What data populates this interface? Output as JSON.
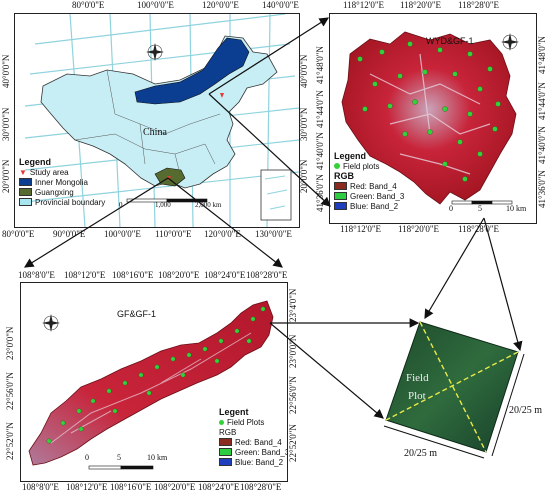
{
  "china_panel": {
    "top_ticks": [
      "80°0'0\"E",
      "100°0'0\"E",
      "120°0'0\"E",
      "140°0'0\"E"
    ],
    "bottom_ticks": [
      "80°0'0\"E",
      "90°0'0\"E",
      "100°0'0\"E",
      "110°0'0\"E",
      "120°0'0\"E",
      "130°0'0\"E"
    ],
    "left_ticks": [
      "40°0'0\"N",
      "30°0'0\"N",
      "20°0'0\"N"
    ],
    "right_ticks": [
      "40°0'0\"N",
      "30°0'0\"N",
      "20°0'0\"N"
    ],
    "country_label": "China",
    "scale": [
      "0",
      "1,000",
      "2,000 km"
    ],
    "legend": {
      "title": "Legend",
      "items": [
        {
          "label": "Study area",
          "color": "#e53935"
        },
        {
          "label": "Inner Mongolia",
          "color": "#0b3d91"
        },
        {
          "label": "Guangxing",
          "color": "#556b2f"
        },
        {
          "label": "Provincial boundary",
          "color": "#a7e5ef"
        }
      ]
    }
  },
  "wyd_panel": {
    "title": "WYD&GF-1",
    "top_ticks": [
      "118°12'0\"E",
      "118°20'0\"E",
      "118°28'0\"E"
    ],
    "bottom_ticks": [
      "118°12'0\"E",
      "118°20'0\"E",
      "118°28'0\"E"
    ],
    "right_ticks": [
      "41°48'0\"N",
      "41°44'0\"N",
      "41°40'0\"N",
      "41°36'0\"N"
    ],
    "left_ticks": [
      "41°48'0\"N",
      "41°44'0\"N",
      "41°40'0\"N",
      "41°36'0\"N"
    ],
    "scale": [
      "0",
      "5",
      "10 km"
    ],
    "legend": {
      "title": "Legend",
      "field_plots": "Field plots",
      "rgb_title": "RGB",
      "bands": [
        {
          "label": "Red:  Band_4",
          "color": "#8b2a1e"
        },
        {
          "label": "Green: Band_3",
          "color": "#2ecc40"
        },
        {
          "label": "Blue:  Band_2",
          "color": "#1f3fbf"
        }
      ]
    }
  },
  "gf_panel": {
    "title": "GF&GF-1",
    "top_ticks": [
      "108°8'0\"E",
      "108°12'0\"E",
      "108°16'0\"E",
      "108°20'0\"E",
      "108°24'0\"E",
      "108°28'0\"E"
    ],
    "bottom_ticks": [
      "108°8'0\"E",
      "108°12'0\"E",
      "108°16'0\"E",
      "108°20'0\"E",
      "108°24'0\"E",
      "108°28'0\"E"
    ],
    "left_ticks": [
      "23°0'0\"N",
      "22°56'0\"N",
      "22°52'0\"N"
    ],
    "right_ticks": [
      "23°4'0\"N",
      "23°0'0\"N",
      "22°56'0\"N",
      "22°52'0\"N"
    ],
    "scale": [
      "0",
      "5",
      "10 km"
    ],
    "legend": {
      "title": "Legent",
      "field_plots": "Field Plots",
      "rgb_title": "RGB",
      "bands": [
        {
          "label": "Red:   Band_4",
          "color": "#8b2a1e"
        },
        {
          "label": "Green: Band_3",
          "color": "#2ecc40"
        },
        {
          "label": "Blue:  Band_2",
          "color": "#1f3fbf"
        }
      ]
    }
  },
  "plot_panel": {
    "label_line1": "Field",
    "label_line2": "Plot",
    "dim_right": "20/25 m",
    "dim_bottom": "20/25 m"
  }
}
